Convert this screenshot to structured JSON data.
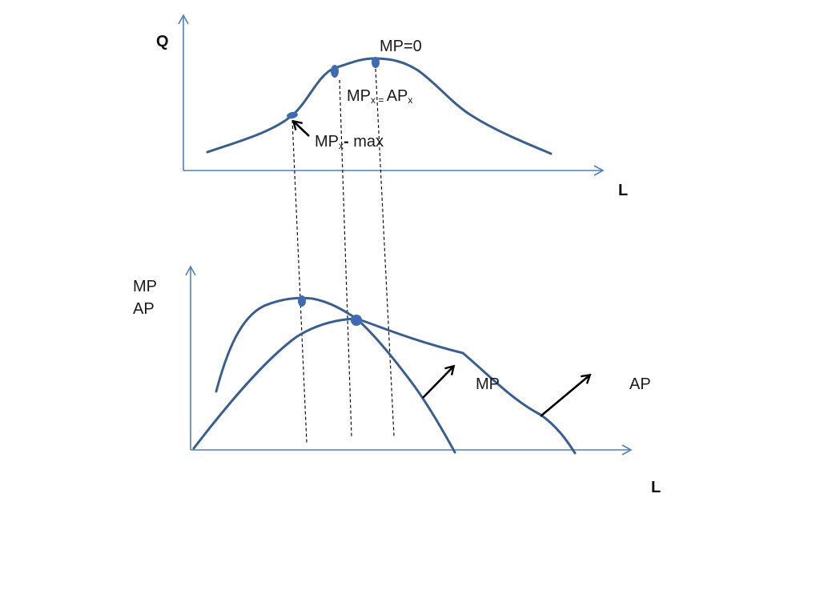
{
  "colors": {
    "axis": "#4f81bd",
    "curve": "#3a5f8f",
    "dot": "#3f6bb0",
    "guide": "#111111",
    "arrow": "#000000",
    "background": "#ffffff"
  },
  "top_panel": {
    "y_axis_label": "Q",
    "x_axis_label": "L",
    "annotations": {
      "mp_zero": "MP=0",
      "mp_eq_ap": {
        "mp": "MP",
        "mp_sub": "x",
        "eq": " = ",
        "ap": "AP",
        "ap_sub": "x"
      },
      "mp_max": {
        "mp": "MP",
        "mp_sub": "x",
        "dash": "- ",
        "max": "max"
      }
    },
    "arrow_icon": "arrow-up-left-icon"
  },
  "bottom_panel": {
    "y_axis_label_line1": "MP",
    "y_axis_label_line2": "AP",
    "x_axis_label": "L",
    "curve_labels": {
      "mp": "MP",
      "ap": "AP"
    },
    "arrow_icon": "arrow-up-right-icon"
  }
}
